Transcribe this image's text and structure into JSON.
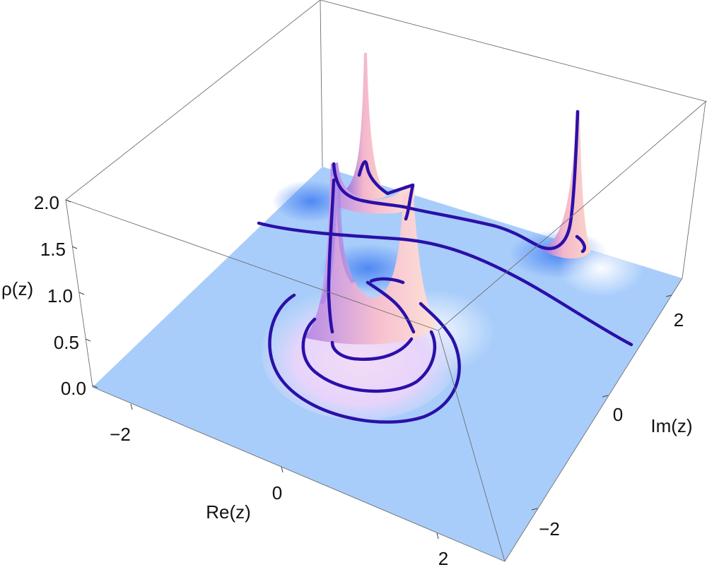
{
  "chart_data": {
    "type": "3d-surface",
    "title": "",
    "xlabel": "Re(z)",
    "ylabel": "Im(z)",
    "zlabel": "ρ(z)",
    "x_ticks": [
      "−2",
      "0",
      "2"
    ],
    "y_ticks": [
      "−2",
      "0",
      "2"
    ],
    "z_ticks": [
      "0.0",
      "0.5",
      "1.0",
      "1.5",
      "2.0"
    ],
    "zlim": [
      0,
      2
    ],
    "grid": false,
    "peaks": [
      {
        "re": -1.3,
        "im": 0.9,
        "height": 2.0
      },
      {
        "re": -0.6,
        "im": 0.8,
        "height": 1.4
      },
      {
        "re": -0.5,
        "im": -0.5,
        "height": 1.1
      },
      {
        "re": 0.2,
        "im": -0.3,
        "height": 1.1
      },
      {
        "re": 1.4,
        "im": 1.9,
        "height": 1.8
      }
    ],
    "colors": {
      "surface_base": "#a9cdfa",
      "surface_peak": "#f7c5cf",
      "contour_line": "#2a10a8",
      "box_edge": "#6e6e6e"
    }
  }
}
